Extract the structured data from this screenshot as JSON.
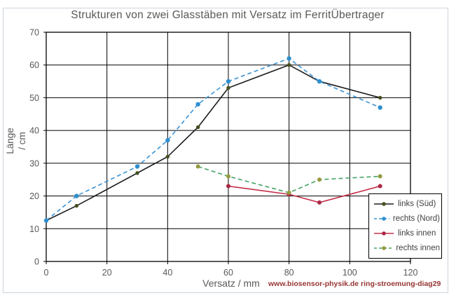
{
  "chart_data": {
    "type": "line",
    "title": "Strukturen von zwei Glasstäben mit Versatz im FerritÜbertrager",
    "xlabel": "Versatz / mm",
    "ylabel": "Länge / cm",
    "ylabel_lines": [
      "Länge",
      "/ cm"
    ],
    "annotation": "www.biosensor-physik.de ring-stroemung-diag29",
    "xlim": [
      0,
      120
    ],
    "ylim": [
      0,
      70
    ],
    "x_ticks": [
      0,
      20,
      40,
      60,
      80,
      100,
      120
    ],
    "y_ticks": [
      0,
      10,
      20,
      30,
      40,
      50,
      60,
      70
    ],
    "grid": true,
    "legend_position": "inside-bottom-right",
    "series": [
      {
        "id": "links-sued",
        "name": "links (Süd)",
        "color": "#1c1c1c",
        "marker_color": "#44501f",
        "dash": "solid",
        "marker_radius": 2.7,
        "x": [
          0,
          10,
          30,
          40,
          50,
          60,
          80,
          90,
          110
        ],
        "y": [
          12.5,
          17,
          27,
          32,
          41,
          53,
          60,
          55,
          50
        ]
      },
      {
        "id": "rechts-nord",
        "name": "rechts (Nord)",
        "color": "#3a93d5",
        "marker_color": "#2e8fd0",
        "dash": "dashed",
        "marker_radius": 3.2,
        "x": [
          0,
          10,
          30,
          40,
          50,
          60,
          80,
          90,
          110
        ],
        "y": [
          12.5,
          20,
          29,
          37,
          48,
          55,
          62,
          55,
          47
        ]
      },
      {
        "id": "links-innen",
        "name": "links innen",
        "color": "#c4304a",
        "marker_color": "#ab2644",
        "dash": "solid",
        "marker_radius": 3,
        "x": [
          60,
          80,
          90,
          110
        ],
        "y": [
          23,
          20.5,
          18,
          23
        ]
      },
      {
        "id": "rechts-innen",
        "name": "rechts innen",
        "color": "#45a266",
        "marker_color": "#949a3e",
        "dash": "dashed",
        "marker_radius": 3,
        "x": [
          50,
          60,
          80,
          90,
          110
        ],
        "y": [
          29,
          26,
          21,
          25,
          26
        ]
      }
    ],
    "style": {
      "grid_color": "#000000",
      "tick_label_color": "#595959",
      "title_color": "#595959",
      "annotation_color": "#963634",
      "frame_border_color": "#ccd3dc"
    }
  }
}
